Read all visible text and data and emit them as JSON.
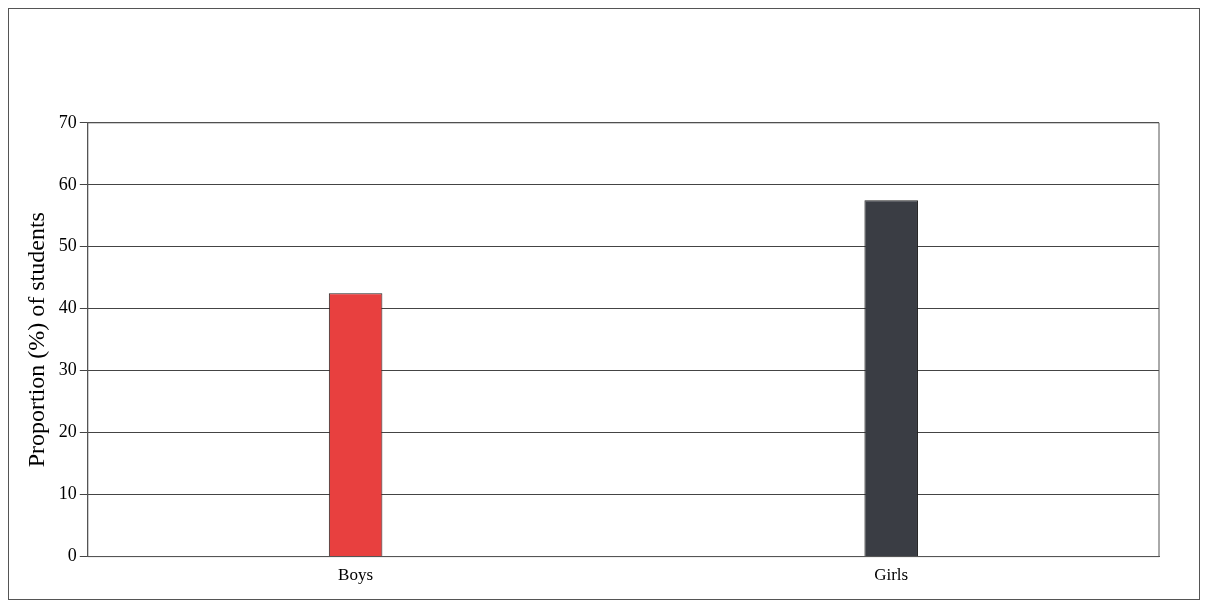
{
  "chart_data": {
    "type": "bar",
    "ylabel": "Proportion (%) of students",
    "categories": [
      "Boys",
      "Girls"
    ],
    "colors": [
      "#e8403f",
      "#3a3d44"
    ],
    "values": [
      42.5,
      57.5
    ],
    "ylim": [
      0,
      70
    ],
    "yticks": [
      0,
      10,
      20,
      30,
      40,
      50,
      60,
      70
    ],
    "grid": "y",
    "legend": false
  }
}
